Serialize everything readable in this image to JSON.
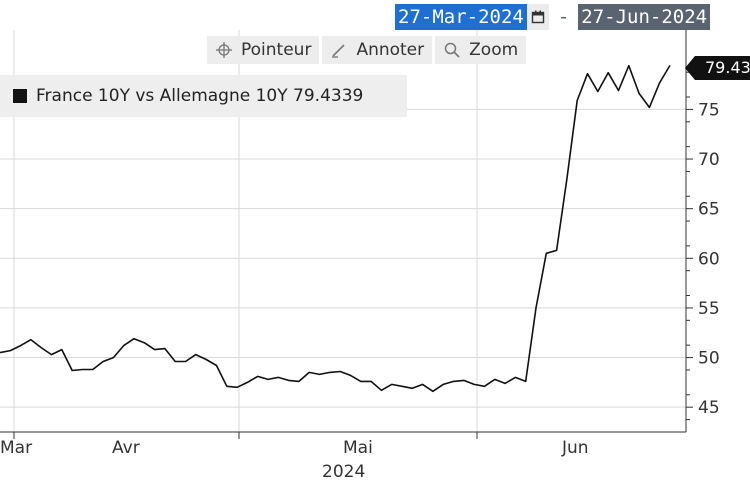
{
  "date_range": {
    "start": "27-Mar-2024",
    "separator": "-",
    "end": "27-Jun-2024"
  },
  "toolbar": {
    "pointer_label": "Pointeur",
    "annotate_label": "Annoter",
    "zoom_label": "Zoom"
  },
  "legend": {
    "label": "France 10Y vs Allemagne 10Y 79.4339"
  },
  "last_value_tag": "79.43",
  "chart_data": {
    "type": "line",
    "series": [
      {
        "name": "France 10Y vs Allemagne 10Y",
        "values": [
          50.5,
          50.7,
          51.2,
          51.8,
          51.0,
          50.3,
          50.8,
          48.7,
          48.8,
          48.8,
          49.6,
          50.0,
          51.2,
          51.9,
          51.5,
          50.8,
          50.9,
          49.6,
          49.6,
          50.3,
          49.8,
          49.2,
          47.1,
          47.0,
          47.5,
          48.1,
          47.8,
          48.0,
          47.7,
          47.6,
          48.5,
          48.3,
          48.5,
          48.6,
          48.2,
          47.6,
          47.6,
          46.7,
          47.3,
          47.1,
          46.9,
          47.3,
          46.6,
          47.3,
          47.6,
          47.7,
          47.3,
          47.1,
          47.8,
          47.4,
          48.0,
          47.6,
          55.0,
          60.5,
          60.8,
          68.0,
          75.9,
          78.6,
          76.8,
          78.7,
          76.9,
          79.4,
          76.6,
          75.2,
          77.7,
          79.43
        ]
      }
    ],
    "x_start": "2024-03-27",
    "x_end": "2024-06-27",
    "x_ticks": [
      "Mar",
      "Avr",
      "Mai",
      "Jun"
    ],
    "x_year_label": "2024",
    "y_ticks": [
      45,
      50,
      55,
      60,
      65,
      70,
      75
    ],
    "y_axis_side": "right",
    "ylim": [
      42.5,
      83
    ],
    "grid": true,
    "colors": {
      "line": "#111111",
      "grid": "#d9d9d9",
      "date_start_bg": "#1f6fd1",
      "date_end_bg": "#5a6470"
    }
  }
}
